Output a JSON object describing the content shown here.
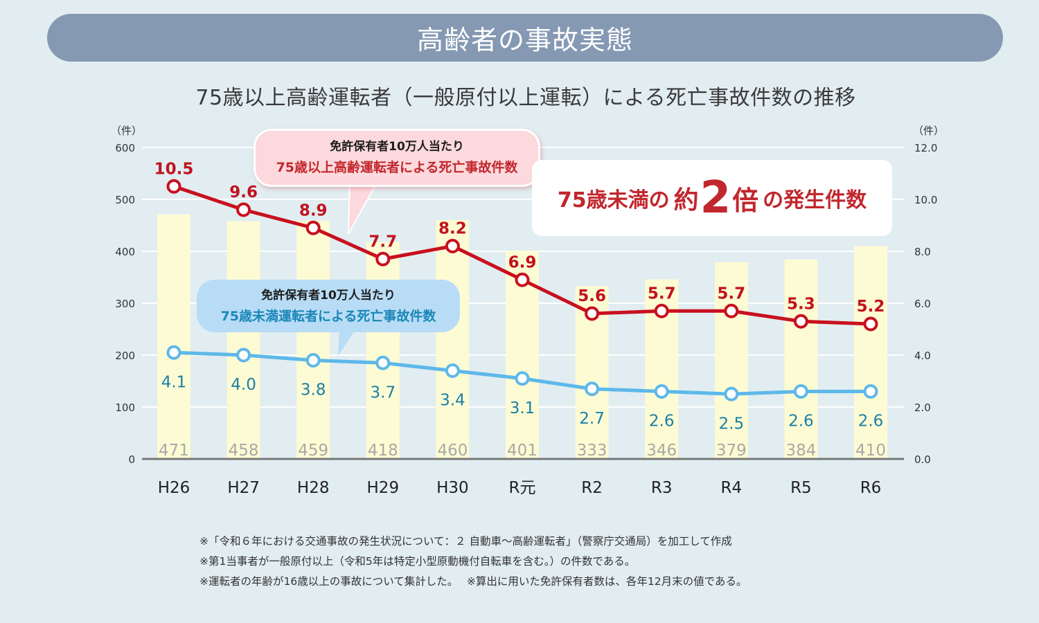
{
  "header": {
    "banner_title": "高齢者の事故実態",
    "subtitle": "75歳以上高齢運転者（一般原付以上運転）による死亡事故件数の推移"
  },
  "callouts": {
    "red": {
      "line1": "免許保有者10万人当たり",
      "line2": "75歳以上高齢運転者による死亡事故件数"
    },
    "blue": {
      "line1": "免許保有者10万人当たり",
      "line2": "75歳未満運転者による死亡事故件数"
    },
    "highlight": {
      "prefix": "75歳未満の",
      "approx": "約",
      "number": "2",
      "times": "倍",
      "suffix": "の発生件数"
    }
  },
  "notes": [
    "※「令和６年における交通事故の発生状況について：２ 自動車〜高齢運転者」（警察庁交通局）を加工して作成",
    "※第1当事者が一般原付以上（令和5年は特定小型原動機付自転車を含む。）の件数である。",
    "※運転者の年齢が16歳以上の事故について集計した。　 ※算出に用いた免許保有者数は、各年12月末の値である。"
  ],
  "colors": {
    "bar": "#fdfbd3",
    "red_line": "#c8101e",
    "blue_line": "#5db8ea",
    "blue_label": "#1a7fa8",
    "red_label": "#c1121f",
    "bar_label": "#a9a9a9",
    "grid": "#ffffff",
    "baseline": "#777777"
  },
  "chart_data": {
    "type": "bar+line",
    "title": "75歳以上高齢運転者（一般原付以上運転）による死亡事故件数の推移",
    "categories": [
      "H26",
      "H27",
      "H28",
      "H29",
      "H30",
      "R元",
      "R2",
      "R3",
      "R4",
      "R5",
      "R6"
    ],
    "left_axis": {
      "unit_label": "（件）",
      "range": [
        0,
        600
      ],
      "ticks": [
        "0",
        "100",
        "200",
        "300",
        "400",
        "500",
        "600"
      ]
    },
    "right_axis": {
      "unit_label": "（件）",
      "range": [
        0,
        12
      ],
      "ticks": [
        "0.0",
        "2.0",
        "4.0",
        "6.0",
        "8.0",
        "10.0",
        "12.0"
      ]
    },
    "grid": true,
    "series": [
      {
        "name": "75歳以上高齢運転者による死亡事故件数",
        "type": "bar",
        "axis": "left",
        "values": [
          471,
          458,
          459,
          418,
          460,
          401,
          333,
          346,
          379,
          384,
          410
        ]
      },
      {
        "name": "免許保有者10万人当たり 75歳以上高齢運転者による死亡事故件数",
        "type": "line",
        "axis": "right",
        "values": [
          10.5,
          9.6,
          8.9,
          7.7,
          8.2,
          6.9,
          5.6,
          5.7,
          5.7,
          5.3,
          5.2
        ],
        "labels": [
          "10.5",
          "9.6",
          "8.9",
          "7.7",
          "8.2",
          "6.9",
          "5.6",
          "5.7",
          "5.7",
          "5.3",
          "5.2"
        ]
      },
      {
        "name": "免許保有者10万人当たり 75歳未満運転者による死亡事故件数",
        "type": "line",
        "axis": "right",
        "values": [
          4.1,
          4.0,
          3.8,
          3.7,
          3.4,
          3.1,
          2.7,
          2.6,
          2.5,
          2.6,
          2.6
        ],
        "labels": [
          "4.1",
          "4.0",
          "3.8",
          "3.7",
          "3.4",
          "3.1",
          "2.7",
          "2.6",
          "2.5",
          "2.6",
          "2.6"
        ]
      }
    ],
    "annotation": "75歳未満の約2倍の発生件数"
  }
}
